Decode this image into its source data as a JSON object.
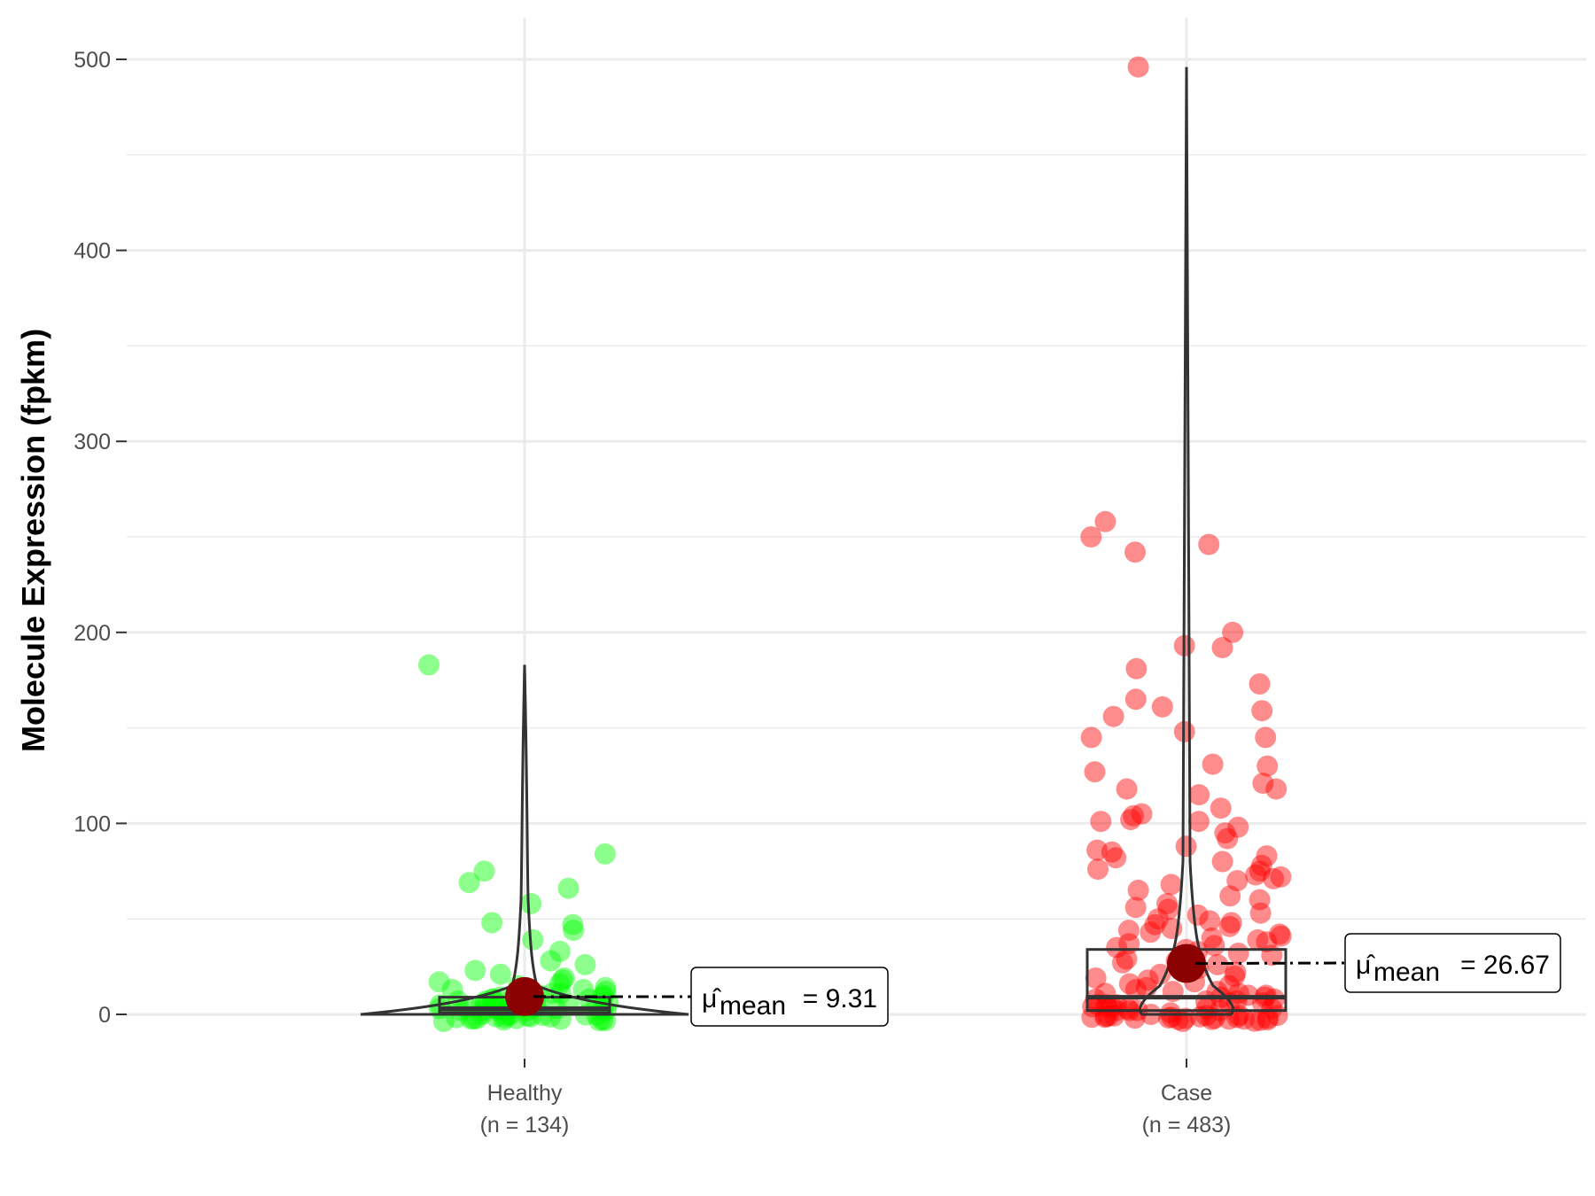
{
  "chart_data": {
    "type": "scatter",
    "subtype": "violin-box-jitter",
    "title": "",
    "xlabel": "",
    "ylabel": "Molecule Expression (fpkm)",
    "ylim": [
      -20,
      520
    ],
    "yticks": [
      0,
      100,
      200,
      300,
      400,
      500
    ],
    "grid": true,
    "legend": "none",
    "categories": [
      "Healthy",
      "Case"
    ],
    "series": [
      {
        "name": "Healthy",
        "group_label": "Healthy",
        "n_label": "(n = 134)",
        "n": 134,
        "color": "#00ff00",
        "mean": 9.31,
        "mean_text": "9.31",
        "box": {
          "q1": 1,
          "median": 3,
          "q3": 9,
          "whisker_low": 0,
          "whisker_high": 22
        },
        "violin_max": 183,
        "points": [
          183,
          84,
          75,
          69,
          66,
          58,
          48,
          47,
          44,
          39,
          33,
          28,
          26,
          23,
          21,
          19,
          18,
          17,
          16,
          15,
          14,
          13,
          13,
          12,
          12,
          11,
          11,
          10,
          10,
          9,
          9,
          8,
          8,
          8,
          7,
          7,
          7,
          6,
          6,
          6,
          5,
          5,
          5,
          5,
          4,
          4,
          4,
          4,
          3,
          3,
          3,
          3,
          3,
          2,
          2,
          2,
          2,
          2,
          2,
          1,
          1,
          1,
          1,
          1,
          1,
          1,
          1,
          0,
          0,
          0,
          0,
          0,
          0,
          0,
          0,
          0,
          0,
          0,
          0,
          0,
          0
        ]
      },
      {
        "name": "Case",
        "group_label": "Case",
        "n_label": "(n = 483)",
        "n": 483,
        "color": "#ff0000",
        "mean": 26.67,
        "mean_text": "26.67",
        "box": {
          "q1": 2,
          "median": 9,
          "q3": 34,
          "whisker_low": 0,
          "whisker_high": 84
        },
        "violin_max": 496,
        "points": [
          496,
          258,
          250,
          246,
          242,
          200,
          193,
          192,
          181,
          173,
          165,
          161,
          159,
          156,
          148,
          145,
          145,
          131,
          130,
          127,
          121,
          118,
          118,
          115,
          108,
          105,
          104,
          102,
          101,
          101,
          98,
          95,
          92,
          88,
          86,
          85,
          83,
          82,
          80,
          78,
          76,
          75,
          73,
          72,
          71,
          70,
          68,
          65,
          62,
          60,
          58,
          56,
          55,
          53,
          52,
          50,
          49,
          48,
          47,
          46,
          45,
          44,
          43,
          42,
          41,
          40,
          39,
          38,
          37,
          36,
          35,
          34,
          33,
          32,
          31,
          30,
          29,
          28,
          27,
          26,
          25,
          24,
          23,
          22,
          21,
          20,
          19,
          18,
          17,
          16,
          15,
          14,
          13,
          12,
          12,
          11,
          11,
          10,
          10,
          9,
          9,
          8,
          8,
          7,
          7,
          6,
          6,
          5,
          5,
          5,
          4,
          4,
          4,
          3,
          3,
          3,
          2,
          2,
          2,
          2,
          1,
          1,
          1,
          1,
          1,
          0,
          0,
          0,
          0,
          0,
          0,
          0,
          0,
          0,
          0,
          0,
          0,
          0,
          0,
          0,
          0,
          0,
          0,
          0,
          0,
          0
        ]
      }
    ]
  }
}
